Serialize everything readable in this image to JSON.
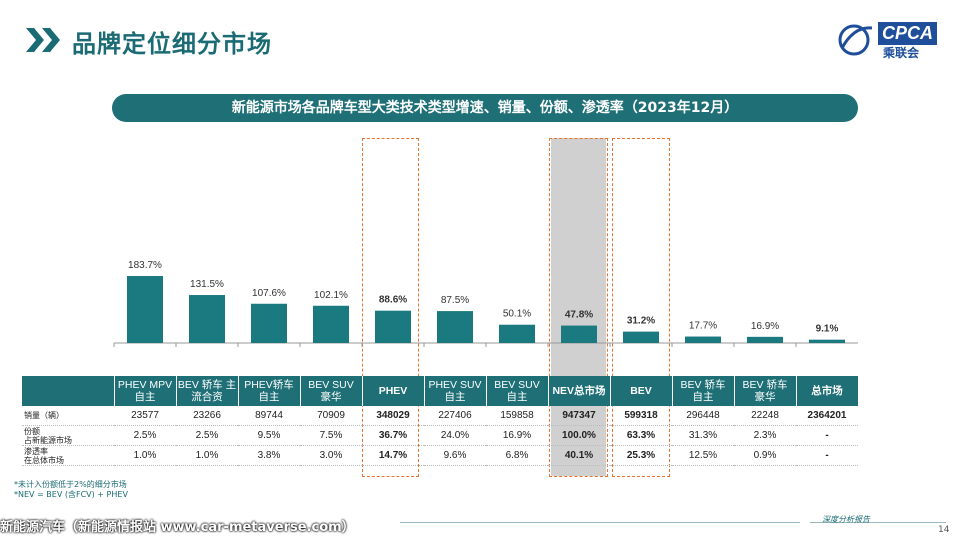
{
  "header": {
    "title": "品牌定位细分市场"
  },
  "logo": {
    "text": "CPCA",
    "sub": "乘联会"
  },
  "banner": {
    "text": "新能源市场各品牌车型大类技术类型增速、销量、份额、渗透率（2023年12月）"
  },
  "chart_data": {
    "type": "bar",
    "categories": [
      "PHEV MPV 自主",
      "BEV 轿车 主流合资",
      "PHEV轿车 自主",
      "BEV SUV 豪华",
      "PHEV",
      "PHEV SUV 自主",
      "BEV SUV 自主",
      "NEV总市场",
      "BEV",
      "BEV 轿车 自主",
      "BEV 轿车 豪华",
      "总市场"
    ],
    "values": [
      183.7,
      131.5,
      107.6,
      102.1,
      88.6,
      87.5,
      50.1,
      47.8,
      31.2,
      17.7,
      16.9,
      9.1
    ],
    "value_labels": [
      "183.7%",
      "131.5%",
      "107.6%",
      "102.1%",
      "88.6%",
      "87.5%",
      "50.1%",
      "47.8%",
      "31.2%",
      "17.7%",
      "16.9%",
      "9.1%"
    ],
    "bold_indices": [
      4,
      7,
      8,
      11
    ],
    "ylim": [
      0,
      200
    ],
    "bar_color": "#1a7a80"
  },
  "table": {
    "headers": [
      {
        "l1": "PHEV MPV",
        "l2": "自主",
        "bold": false
      },
      {
        "l1": "BEV 轿车 主",
        "l2": "流合资",
        "bold": false
      },
      {
        "l1": "PHEV轿车",
        "l2": "自主",
        "bold": false
      },
      {
        "l1": "BEV SUV",
        "l2": "豪华",
        "bold": false
      },
      {
        "l1": "PHEV",
        "l2": "",
        "bold": true
      },
      {
        "l1": "PHEV SUV",
        "l2": "自主",
        "bold": false
      },
      {
        "l1": "BEV SUV",
        "l2": "自主",
        "bold": false
      },
      {
        "l1": "NEV总市场",
        "l2": "",
        "bold": true
      },
      {
        "l1": "BEV",
        "l2": "",
        "bold": true
      },
      {
        "l1": "BEV 轿车",
        "l2": "自主",
        "bold": false
      },
      {
        "l1": "BEV 轿车",
        "l2": "豪华",
        "bold": false
      },
      {
        "l1": "总市场",
        "l2": "",
        "bold": true
      }
    ],
    "rows": [
      {
        "label": [
          "销量（辆）"
        ],
        "values": [
          "23577",
          "23266",
          "89744",
          "70909",
          "348029",
          "227406",
          "159858",
          "947347",
          "599318",
          "296448",
          "22248",
          "2364201"
        ]
      },
      {
        "label": [
          "份额",
          "占新能源市场"
        ],
        "values": [
          "2.5%",
          "2.5%",
          "9.5%",
          "7.5%",
          "36.7%",
          "24.0%",
          "16.9%",
          "100.0%",
          "63.3%",
          "31.3%",
          "2.3%",
          "-"
        ]
      },
      {
        "label": [
          "渗透率",
          "在总体市场"
        ],
        "values": [
          "1.0%",
          "1.0%",
          "3.8%",
          "3.0%",
          "14.7%",
          "9.6%",
          "6.8%",
          "40.1%",
          "25.3%",
          "12.5%",
          "0.9%",
          "-"
        ]
      }
    ]
  },
  "footnote": {
    "line1": "*未计入份额低于2%的细分市场",
    "line2": "*NEV = BEV (含FCV) + PHEV"
  },
  "footer": {
    "watermark": "新能源汽车（新能源情报站 www.car-metaverse.com）",
    "report": "深度分析报告",
    "page": "14"
  }
}
